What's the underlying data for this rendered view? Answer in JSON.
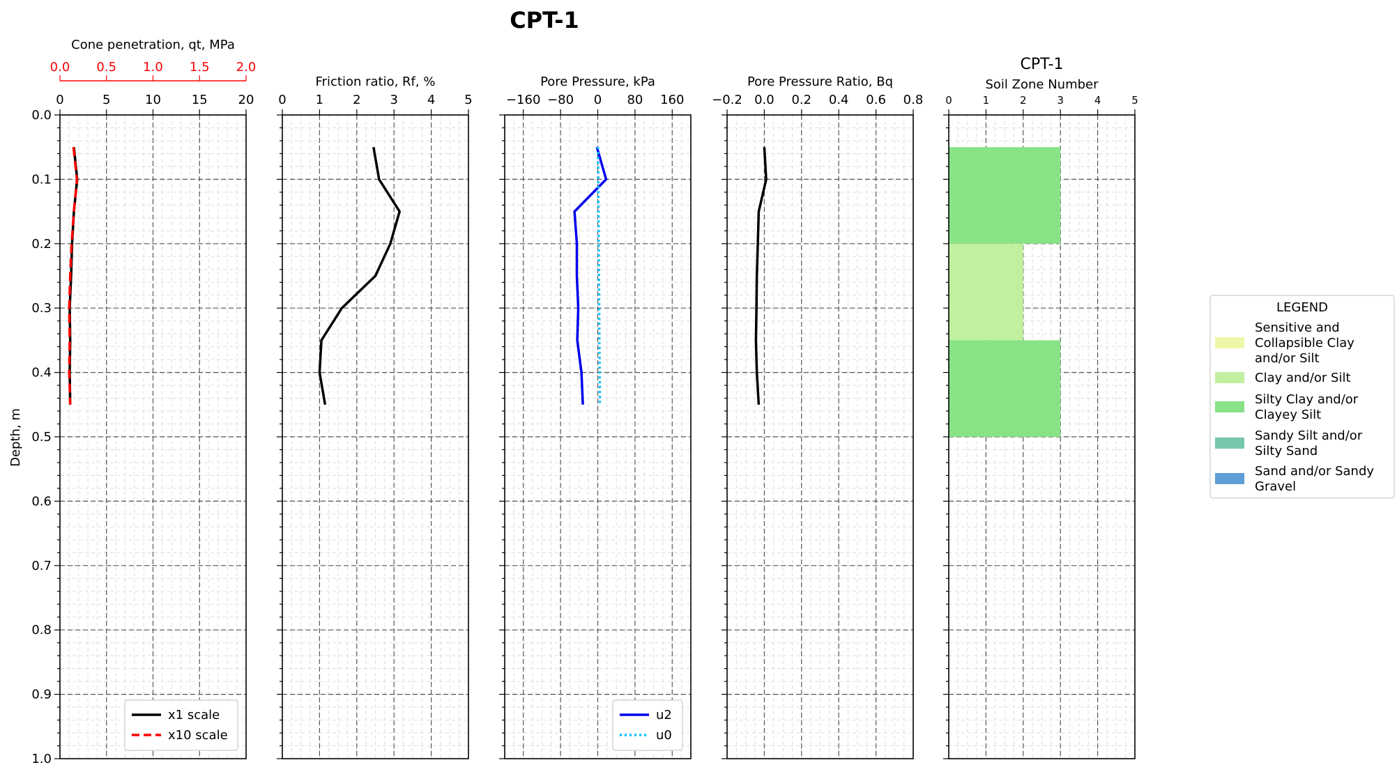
{
  "figure": {
    "title": "CPT-1",
    "ylabel": "Depth, m",
    "ylim": [
      1.0,
      0.0
    ],
    "yticks": [
      "0.0",
      "0.1",
      "0.2",
      "0.3",
      "0.4",
      "0.5",
      "0.6",
      "0.7",
      "0.8",
      "0.9",
      "1.0"
    ]
  },
  "colors": {
    "qt_x1": "#000000",
    "qt_x10": "#ff0000",
    "friction": "#000000",
    "u2": "#0000ee",
    "u0": "#00bfff",
    "bq": "#000000"
  },
  "chart_data": [
    {
      "type": "line",
      "panel": "cone",
      "xlabel": "Cone penetration, qt, MPa",
      "xlim": [
        0,
        20
      ],
      "xticks": [
        "0",
        "5",
        "10",
        "15",
        "20"
      ],
      "secondary_xlim": [
        0.0,
        2.0
      ],
      "secondary_xticks": [
        "0.0",
        "0.5",
        "1.0",
        "1.5",
        "2.0"
      ],
      "legend": [
        "x1 scale",
        "x10 scale"
      ],
      "series": [
        {
          "name": "x1 scale",
          "style": "solid",
          "color": "#000000",
          "depth": [
            0.05,
            0.1,
            0.15,
            0.2,
            0.25,
            0.3,
            0.35,
            0.4,
            0.45
          ],
          "values": [
            1.5,
            1.85,
            1.5,
            1.3,
            1.2,
            1.05,
            1.1,
            1.05,
            1.1
          ]
        },
        {
          "name": "x10 scale",
          "style": "dashed",
          "color": "#ff0000",
          "depth": [
            0.05,
            0.1,
            0.15,
            0.2,
            0.25,
            0.3,
            0.35,
            0.4,
            0.45
          ],
          "values": [
            1.45,
            1.83,
            1.5,
            1.25,
            1.1,
            1.0,
            1.05,
            1.0,
            1.1
          ]
        }
      ]
    },
    {
      "type": "line",
      "panel": "friction",
      "xlabel": "Friction ratio, Rf, %",
      "xlim": [
        0,
        5
      ],
      "xticks": [
        "0",
        "1",
        "2",
        "3",
        "4",
        "5"
      ],
      "series": [
        {
          "name": "",
          "style": "solid",
          "color": "#000000",
          "depth": [
            0.05,
            0.1,
            0.15,
            0.2,
            0.25,
            0.3,
            0.35,
            0.4,
            0.45
          ],
          "values": [
            2.45,
            2.6,
            3.15,
            2.9,
            2.5,
            1.6,
            1.05,
            1.0,
            1.15
          ]
        }
      ]
    },
    {
      "type": "line",
      "panel": "pore",
      "xlabel": "Pore Pressure, kPa",
      "xlim": [
        -200,
        200
      ],
      "xticks": [
        "−160",
        "−80",
        "0",
        "80",
        "160"
      ],
      "xtick_values": [
        -160,
        -80,
        0,
        80,
        160
      ],
      "legend": [
        "u2",
        "u0"
      ],
      "series": [
        {
          "name": "u2",
          "style": "solid",
          "color": "#0000ee",
          "depth": [
            0.05,
            0.1,
            0.15,
            0.2,
            0.25,
            0.3,
            0.35,
            0.4,
            0.45
          ],
          "values": [
            -2,
            18,
            -50,
            -45,
            -45,
            -42,
            -44,
            -35,
            -32
          ]
        },
        {
          "name": "u0",
          "style": "dotted",
          "color": "#00bfff",
          "depth": [
            0.05,
            0.1,
            0.15,
            0.2,
            0.25,
            0.3,
            0.35,
            0.4,
            0.45
          ],
          "values": [
            0.5,
            1,
            1.5,
            2,
            2.5,
            3,
            3.5,
            4,
            4.5
          ]
        }
      ]
    },
    {
      "type": "line",
      "panel": "bq",
      "xlabel": "Pore Pressure Ratio, Bq",
      "xlim": [
        -0.2,
        0.8
      ],
      "xticks": [
        "−0.2",
        "0.0",
        "0.2",
        "0.4",
        "0.6",
        "0.8"
      ],
      "xtick_values": [
        -0.2,
        0.0,
        0.2,
        0.4,
        0.6,
        0.8
      ],
      "series": [
        {
          "name": "",
          "style": "solid",
          "color": "#000000",
          "depth": [
            0.05,
            0.1,
            0.15,
            0.2,
            0.25,
            0.3,
            0.35,
            0.4,
            0.45
          ],
          "values": [
            0.0,
            0.01,
            -0.03,
            -0.035,
            -0.04,
            -0.042,
            -0.045,
            -0.04,
            -0.03
          ]
        }
      ]
    },
    {
      "type": "bar",
      "panel": "soil",
      "title": "CPT-1",
      "xlabel": "Soil Zone Number",
      "xlim": [
        0,
        5
      ],
      "xticks": [
        "0",
        "1",
        "2",
        "3",
        "4",
        "5"
      ],
      "bars": [
        {
          "top": 0.05,
          "bottom": 0.2,
          "zone": 3,
          "color": "#88e387"
        },
        {
          "top": 0.2,
          "bottom": 0.35,
          "zone": 2,
          "color": "#c0f0a0"
        },
        {
          "top": 0.35,
          "bottom": 0.5,
          "zone": 3,
          "color": "#88e387"
        }
      ]
    }
  ],
  "legend": {
    "title": "LEGEND",
    "items": [
      {
        "lines": [
          "Sensitive and",
          "Collapsible Clay",
          "and/or Silt"
        ],
        "color": "#eef7a8"
      },
      {
        "lines": [
          "Clay and/or Silt"
        ],
        "color": "#c0f0a0"
      },
      {
        "lines": [
          "Silty Clay and/or",
          "Clayey Silt"
        ],
        "color": "#88e387"
      },
      {
        "lines": [
          "Sandy Silt and/or",
          "Silty Sand"
        ],
        "color": "#77c7ad"
      },
      {
        "lines": [
          "Sand and/or Sandy",
          "Gravel"
        ],
        "color": "#5e9fd6"
      }
    ]
  }
}
